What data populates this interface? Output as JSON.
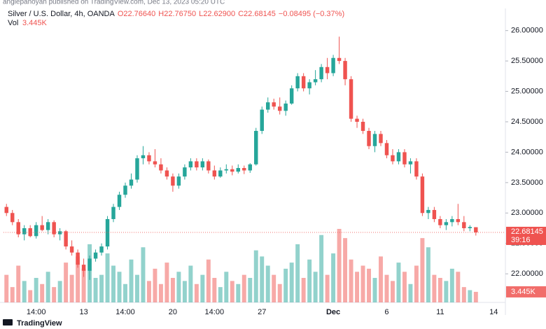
{
  "publisher": "anglepanoyan published on TradingView.com, Dec 13, 2023 05:20 UTC",
  "footer": "TradingView",
  "chart_data": {
    "type": "candlestick",
    "title": "Silver / U.S. Dollar, 4h, OANDA",
    "ohlc_labels": [
      "O22.76640",
      "H22.76750",
      "L22.62900",
      "C22.68145"
    ],
    "change_label": "−0.08495 (−0.37%)",
    "volume_name": "Vol",
    "volume_label": "3.445K",
    "countdown": "39:16",
    "up_color": "#26a69a",
    "down_color": "#ef5350",
    "categories": [
      null,
      null,
      null,
      null,
      null,
      "14:00",
      null,
      null,
      null,
      null,
      null,
      null,
      null,
      "13",
      null,
      null,
      null,
      null,
      null,
      null,
      "14:00",
      null,
      null,
      null,
      null,
      null,
      null,
      null,
      "20",
      null,
      null,
      null,
      null,
      null,
      null,
      "14:00",
      null,
      null,
      null,
      null,
      null,
      null,
      null,
      "27",
      null,
      null,
      null,
      null,
      null,
      null,
      null,
      null,
      null,
      null,
      null,
      "Dec",
      null,
      null,
      null,
      null,
      null,
      null,
      null,
      null,
      "6",
      null,
      null,
      null,
      null,
      null,
      null,
      null,
      null,
      "11",
      null,
      null,
      null,
      null,
      null,
      null,
      null,
      null,
      "14",
      null
    ],
    "open": [
      23.1,
      23.0,
      22.85,
      22.65,
      22.75,
      22.62,
      22.8,
      22.72,
      22.85,
      22.65,
      22.7,
      22.45,
      22.35,
      22.15,
      22.05,
      22.25,
      22.35,
      22.45,
      22.9,
      23.1,
      23.3,
      23.45,
      23.55,
      23.9,
      23.95,
      23.85,
      23.8,
      23.7,
      23.6,
      23.45,
      23.6,
      23.75,
      23.85,
      23.75,
      23.85,
      23.7,
      23.6,
      23.7,
      23.72,
      23.68,
      23.74,
      23.7,
      23.8,
      24.35,
      24.7,
      24.82,
      24.75,
      24.68,
      24.8,
      25.05,
      25.25,
      25.05,
      25.15,
      25.2,
      25.4,
      25.3,
      25.55,
      25.5,
      25.2,
      24.55,
      24.5,
      24.35,
      24.1,
      24.3,
      24.15,
      23.95,
      23.85,
      24.0,
      23.8,
      23.85,
      23.6,
      23.0,
      23.05,
      22.9,
      22.8,
      22.85,
      22.9,
      22.85,
      22.75,
      22.7664,
      null,
      null,
      null,
      null
    ],
    "high": [
      23.15,
      23.05,
      22.9,
      22.8,
      22.8,
      22.85,
      22.95,
      22.9,
      22.88,
      22.75,
      22.72,
      22.55,
      22.4,
      22.25,
      22.3,
      22.4,
      22.5,
      22.95,
      23.15,
      23.35,
      23.5,
      23.65,
      23.95,
      24.1,
      24.0,
      24.05,
      23.9,
      23.75,
      23.65,
      23.65,
      23.8,
      23.9,
      23.9,
      23.9,
      23.88,
      23.78,
      23.75,
      23.8,
      23.78,
      23.8,
      23.78,
      23.82,
      24.4,
      24.75,
      24.9,
      24.88,
      24.9,
      24.85,
      25.1,
      25.3,
      25.3,
      25.2,
      25.35,
      25.45,
      25.55,
      25.6,
      25.9,
      25.55,
      25.25,
      24.6,
      24.55,
      24.4,
      24.35,
      24.35,
      24.2,
      24.05,
      24.05,
      24.05,
      23.9,
      23.9,
      23.65,
      23.1,
      23.1,
      22.95,
      22.9,
      22.95,
      23.15,
      22.95,
      22.8,
      22.7675,
      null,
      null,
      null,
      null
    ],
    "low": [
      22.95,
      22.8,
      22.6,
      22.55,
      22.6,
      22.58,
      22.7,
      22.65,
      22.6,
      22.55,
      22.4,
      22.3,
      22.1,
      21.95,
      21.9,
      22.2,
      22.3,
      22.4,
      22.85,
      23.05,
      23.25,
      23.4,
      23.5,
      23.8,
      23.8,
      23.75,
      23.65,
      23.55,
      23.35,
      23.4,
      23.55,
      23.7,
      23.7,
      23.7,
      23.65,
      23.55,
      23.58,
      23.65,
      23.62,
      23.65,
      23.64,
      23.66,
      23.78,
      24.3,
      24.65,
      24.7,
      24.62,
      24.6,
      24.78,
      25.0,
      25.0,
      24.95,
      25.1,
      25.15,
      25.2,
      25.25,
      25.45,
      25.1,
      24.5,
      24.4,
      24.3,
      24.05,
      24.0,
      24.1,
      23.9,
      23.8,
      23.8,
      23.75,
      23.65,
      23.55,
      22.95,
      22.9,
      22.85,
      22.75,
      22.72,
      22.78,
      22.8,
      22.7,
      22.7,
      22.629,
      null,
      null,
      null,
      null
    ],
    "close": [
      23.0,
      22.85,
      22.65,
      22.75,
      22.62,
      22.8,
      22.72,
      22.85,
      22.65,
      22.7,
      22.45,
      22.35,
      22.15,
      22.05,
      22.25,
      22.35,
      22.45,
      22.9,
      23.1,
      23.3,
      23.45,
      23.55,
      23.9,
      23.95,
      23.85,
      23.8,
      23.7,
      23.6,
      23.45,
      23.6,
      23.75,
      23.85,
      23.75,
      23.85,
      23.7,
      23.6,
      23.7,
      23.72,
      23.68,
      23.74,
      23.7,
      23.8,
      24.35,
      24.7,
      24.82,
      24.75,
      24.68,
      24.8,
      25.05,
      25.25,
      25.05,
      25.15,
      25.2,
      25.4,
      25.3,
      25.55,
      25.5,
      25.2,
      24.55,
      24.5,
      24.35,
      24.1,
      24.3,
      24.15,
      23.95,
      23.85,
      24.0,
      23.8,
      23.85,
      23.6,
      23.0,
      23.05,
      22.9,
      22.8,
      22.85,
      22.9,
      22.85,
      22.75,
      22.77,
      22.68145,
      null,
      null,
      null,
      null
    ],
    "volume": [
      9000,
      5000,
      12000,
      7000,
      4000,
      8000,
      6000,
      10000,
      5000,
      7000,
      13000,
      9000,
      15000,
      11000,
      19000,
      8000,
      9000,
      16000,
      12000,
      10000,
      6000,
      14000,
      9000,
      18000,
      7000,
      11000,
      6000,
      13000,
      8000,
      10000,
      7000,
      12000,
      6000,
      9000,
      14000,
      8000,
      5000,
      10000,
      7000,
      6000,
      9000,
      8000,
      17000,
      15000,
      12000,
      9000,
      6000,
      11000,
      13000,
      19000,
      8000,
      14000,
      10000,
      22000,
      9000,
      16000,
      24000,
      21000,
      14000,
      10000,
      12000,
      11000,
      8000,
      15000,
      9000,
      7000,
      13000,
      10000,
      6000,
      12000,
      21000,
      18000,
      9000,
      8000,
      7000,
      11000,
      10000,
      5000,
      4000,
      3445,
      null,
      null,
      null,
      null
    ],
    "ylim": [
      21.53,
      26.33
    ],
    "yticks": [
      {
        "value": 22,
        "label": "22.00000"
      },
      {
        "value": 22.5,
        "label": "22.50000"
      },
      {
        "value": 23,
        "label": "23.00000"
      },
      {
        "value": 23.5,
        "label": "23.50000"
      },
      {
        "value": 24,
        "label": "24.00000"
      },
      {
        "value": 24.5,
        "label": "24.50000"
      },
      {
        "value": 25,
        "label": "25.00000"
      },
      {
        "value": 25.5,
        "label": "25.50000"
      },
      {
        "value": 26,
        "label": "26.00000"
      }
    ],
    "grid": false
  }
}
